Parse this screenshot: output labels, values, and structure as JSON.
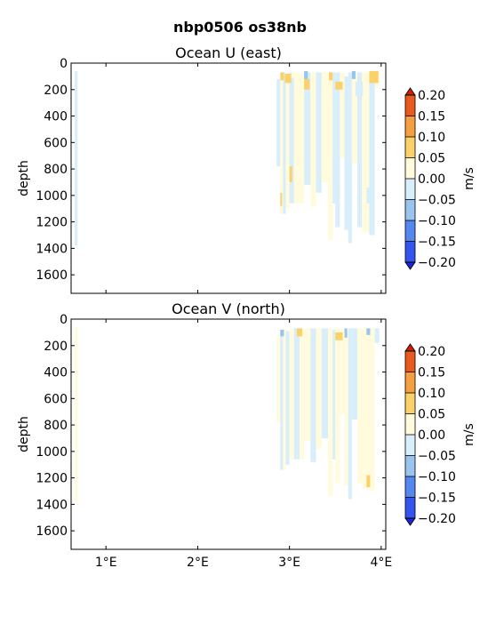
{
  "suptitle": "nbp0506 os38nb",
  "palette": {
    "-0.20": "#3355ee",
    "-0.15": "#5588ee",
    "-0.10": "#99c4f0",
    "-0.05": "#d8eefa",
    "0.00": "#fffbdc",
    "0.05": "#fbd26a",
    "0.10": "#f5a040",
    "0.15": "#e85a20",
    "over": "#cc2200",
    "under": "#2222dd"
  },
  "chart_data": [
    {
      "type": "heatmap",
      "title": "Ocean U (east)",
      "ylabel": "depth",
      "colorbar_label": "m/s",
      "xlim": [
        0.62,
        4.05
      ],
      "ylim": [
        1740,
        0
      ],
      "xticks": [
        1,
        2,
        3,
        4
      ],
      "xticklabels": [
        "",
        "",
        "",
        ""
      ],
      "yticks": [
        0,
        200,
        400,
        600,
        800,
        1000,
        1200,
        1400,
        1600
      ],
      "yticklabels": [
        "0",
        "200",
        "400",
        "600",
        "800",
        "1000",
        "1200",
        "1400",
        "1600"
      ],
      "cbar_ticks": [
        "0.20",
        "0.15",
        "0.10",
        "0.05",
        "0.00",
        "−0.05",
        "−0.10",
        "−0.15",
        "−0.20"
      ],
      "levels": [
        -0.2,
        -0.15,
        -0.1,
        -0.05,
        0.0,
        0.05,
        0.1,
        0.15,
        0.2
      ],
      "profiles": [
        {
          "x0": 0.66,
          "x1": 0.69,
          "top": 60,
          "bottom": 1380,
          "value": -0.02
        },
        {
          "x0": 2.86,
          "x1": 2.9,
          "top": 120,
          "bottom": 780,
          "value": -0.03
        },
        {
          "x0": 2.9,
          "x1": 2.93,
          "top": 90,
          "bottom": 1140,
          "value": 0.03
        },
        {
          "x0": 2.93,
          "x1": 2.96,
          "top": 70,
          "bottom": 1140,
          "value": -0.02
        },
        {
          "x0": 2.96,
          "x1": 3.0,
          "top": 90,
          "bottom": 1100,
          "value": 0.02
        },
        {
          "x0": 3.0,
          "x1": 3.05,
          "top": 70,
          "bottom": 1060,
          "value": -0.03
        },
        {
          "x0": 3.05,
          "x1": 3.11,
          "top": 70,
          "bottom": 1060,
          "value": 0.02
        },
        {
          "x0": 3.11,
          "x1": 3.16,
          "top": 80,
          "bottom": 1060,
          "value": 0.03
        },
        {
          "x0": 3.16,
          "x1": 3.23,
          "top": 70,
          "bottom": 920,
          "value": -0.03
        },
        {
          "x0": 3.23,
          "x1": 3.29,
          "top": 70,
          "bottom": 1080,
          "value": 0.03
        },
        {
          "x0": 3.29,
          "x1": 3.35,
          "top": 70,
          "bottom": 980,
          "value": -0.02
        },
        {
          "x0": 3.35,
          "x1": 3.42,
          "top": 70,
          "bottom": 900,
          "value": 0.02
        },
        {
          "x0": 3.42,
          "x1": 3.47,
          "top": 70,
          "bottom": 1340,
          "value": 0.03
        },
        {
          "x0": 3.47,
          "x1": 3.5,
          "top": 70,
          "bottom": 1060,
          "value": -0.03
        },
        {
          "x0": 3.5,
          "x1": 3.55,
          "top": 70,
          "bottom": 1240,
          "value": -0.02
        },
        {
          "x0": 3.55,
          "x1": 3.6,
          "top": 70,
          "bottom": 720,
          "value": 0.02
        },
        {
          "x0": 3.6,
          "x1": 3.64,
          "top": 100,
          "bottom": 1260,
          "value": -0.03
        },
        {
          "x0": 3.64,
          "x1": 3.68,
          "top": 70,
          "bottom": 1360,
          "value": -0.04
        },
        {
          "x0": 3.68,
          "x1": 3.74,
          "top": 70,
          "bottom": 760,
          "value": 0.02
        },
        {
          "x0": 3.74,
          "x1": 3.79,
          "top": 70,
          "bottom": 1240,
          "value": -0.03
        },
        {
          "x0": 3.79,
          "x1": 3.87,
          "top": 70,
          "bottom": 1280,
          "value": 0.03
        },
        {
          "x0": 3.87,
          "x1": 3.93,
          "top": 70,
          "bottom": 1300,
          "value": -0.02
        },
        {
          "x0": 3.93,
          "x1": 3.98,
          "top": 70,
          "bottom": 180,
          "value": 0.03
        }
      ],
      "patches": [
        {
          "x0": 2.9,
          "x1": 2.94,
          "top": 70,
          "bottom": 130,
          "value": 0.07
        },
        {
          "x0": 2.95,
          "x1": 3.02,
          "top": 80,
          "bottom": 150,
          "value": 0.07
        },
        {
          "x0": 3.02,
          "x1": 3.06,
          "top": 70,
          "bottom": 110,
          "value": 0.02
        },
        {
          "x0": 3.16,
          "x1": 3.22,
          "top": 120,
          "bottom": 200,
          "value": 0.08
        },
        {
          "x0": 3.16,
          "x1": 3.2,
          "top": 60,
          "bottom": 120,
          "value": -0.08
        },
        {
          "x0": 3.43,
          "x1": 3.47,
          "top": 70,
          "bottom": 130,
          "value": 0.07
        },
        {
          "x0": 3.5,
          "x1": 3.58,
          "top": 140,
          "bottom": 200,
          "value": 0.07
        },
        {
          "x0": 3.68,
          "x1": 3.72,
          "top": 60,
          "bottom": 120,
          "value": -0.08
        },
        {
          "x0": 3.72,
          "x1": 3.8,
          "top": 140,
          "bottom": 250,
          "value": -0.03
        },
        {
          "x0": 3.87,
          "x1": 3.97,
          "top": 60,
          "bottom": 150,
          "value": 0.08
        },
        {
          "x0": 2.9,
          "x1": 2.92,
          "top": 980,
          "bottom": 1080,
          "value": 0.06
        },
        {
          "x0": 3.0,
          "x1": 3.03,
          "top": 780,
          "bottom": 900,
          "value": 0.06
        },
        {
          "x0": 3.84,
          "x1": 3.88,
          "top": 940,
          "bottom": 1060,
          "value": -0.03
        }
      ]
    },
    {
      "type": "heatmap",
      "title": "Ocean V (north)",
      "ylabel": "depth",
      "colorbar_label": "m/s",
      "xlim": [
        0.62,
        4.05
      ],
      "ylim": [
        1740,
        0
      ],
      "xticks": [
        1,
        2,
        3,
        4
      ],
      "xticklabels": [
        "1°E",
        "2°E",
        "3°E",
        "4°E"
      ],
      "yticks": [
        0,
        200,
        400,
        600,
        800,
        1000,
        1200,
        1400,
        1600
      ],
      "yticklabels": [
        "0",
        "200",
        "400",
        "600",
        "800",
        "1000",
        "1200",
        "1400",
        "1600"
      ],
      "cbar_ticks": [
        "0.20",
        "0.15",
        "0.10",
        "0.05",
        "0.00",
        "−0.05",
        "−0.10",
        "−0.15",
        "−0.20"
      ],
      "levels": [
        -0.2,
        -0.15,
        -0.1,
        -0.05,
        0.0,
        0.05,
        0.1,
        0.15,
        0.2
      ],
      "profiles": [
        {
          "x0": 0.66,
          "x1": 0.69,
          "top": 60,
          "bottom": 1380,
          "value": 0.02
        },
        {
          "x0": 2.86,
          "x1": 2.9,
          "top": 120,
          "bottom": 780,
          "value": 0.02
        },
        {
          "x0": 2.9,
          "x1": 2.93,
          "top": 80,
          "bottom": 1140,
          "value": -0.02
        },
        {
          "x0": 2.93,
          "x1": 2.96,
          "top": 70,
          "bottom": 1140,
          "value": 0.02
        },
        {
          "x0": 2.96,
          "x1": 3.0,
          "top": 90,
          "bottom": 1100,
          "value": -0.03
        },
        {
          "x0": 3.0,
          "x1": 3.05,
          "top": 70,
          "bottom": 1060,
          "value": 0.02
        },
        {
          "x0": 3.05,
          "x1": 3.11,
          "top": 70,
          "bottom": 1060,
          "value": -0.02
        },
        {
          "x0": 3.11,
          "x1": 3.16,
          "top": 70,
          "bottom": 1060,
          "value": 0.03
        },
        {
          "x0": 3.16,
          "x1": 3.23,
          "top": 70,
          "bottom": 920,
          "value": 0.02
        },
        {
          "x0": 3.23,
          "x1": 3.29,
          "top": 70,
          "bottom": 1080,
          "value": -0.02
        },
        {
          "x0": 3.29,
          "x1": 3.35,
          "top": 70,
          "bottom": 980,
          "value": 0.02
        },
        {
          "x0": 3.35,
          "x1": 3.42,
          "top": 70,
          "bottom": 900,
          "value": -0.02
        },
        {
          "x0": 3.42,
          "x1": 3.47,
          "top": 70,
          "bottom": 1340,
          "value": 0.02
        },
        {
          "x0": 3.47,
          "x1": 3.5,
          "top": 80,
          "bottom": 1060,
          "value": -0.02
        },
        {
          "x0": 3.5,
          "x1": 3.55,
          "top": 70,
          "bottom": 1240,
          "value": 0.02
        },
        {
          "x0": 3.55,
          "x1": 3.6,
          "top": 70,
          "bottom": 720,
          "value": 0.03
        },
        {
          "x0": 3.6,
          "x1": 3.64,
          "top": 100,
          "bottom": 1260,
          "value": 0.02
        },
        {
          "x0": 3.64,
          "x1": 3.68,
          "top": 70,
          "bottom": 1360,
          "value": -0.02
        },
        {
          "x0": 3.68,
          "x1": 3.74,
          "top": 70,
          "bottom": 760,
          "value": -0.03
        },
        {
          "x0": 3.74,
          "x1": 3.79,
          "top": 70,
          "bottom": 1240,
          "value": 0.02
        },
        {
          "x0": 3.79,
          "x1": 3.87,
          "top": 70,
          "bottom": 1280,
          "value": 0.03
        },
        {
          "x0": 3.87,
          "x1": 3.93,
          "top": 70,
          "bottom": 1300,
          "value": 0.02
        },
        {
          "x0": 3.93,
          "x1": 3.98,
          "top": 70,
          "bottom": 180,
          "value": -0.02
        }
      ],
      "patches": [
        {
          "x0": 2.9,
          "x1": 2.94,
          "top": 80,
          "bottom": 130,
          "value": -0.08
        },
        {
          "x0": 3.08,
          "x1": 3.14,
          "top": 70,
          "bottom": 130,
          "value": 0.06
        },
        {
          "x0": 3.5,
          "x1": 3.58,
          "top": 100,
          "bottom": 160,
          "value": 0.06
        },
        {
          "x0": 3.6,
          "x1": 3.63,
          "top": 70,
          "bottom": 140,
          "value": -0.06
        },
        {
          "x0": 3.84,
          "x1": 3.88,
          "top": 70,
          "bottom": 120,
          "value": -0.06
        },
        {
          "x0": 3.84,
          "x1": 3.88,
          "top": 1180,
          "bottom": 1270,
          "value": 0.06
        },
        {
          "x0": 0.66,
          "x1": 0.69,
          "top": 200,
          "bottom": 420,
          "value": 0.03
        }
      ]
    }
  ]
}
